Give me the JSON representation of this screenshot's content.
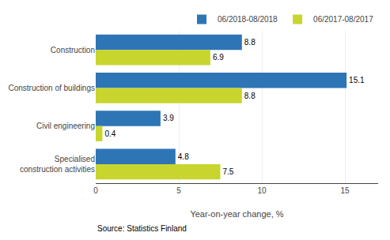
{
  "chart_data": {
    "type": "bar",
    "orientation": "horizontal",
    "categories": [
      "Construction",
      "Construction of buildings",
      "Civil engineering",
      "Specialised\nconstruction activities"
    ],
    "series": [
      {
        "name": "06/2018-08/2018",
        "color": "#2E75B6",
        "values": [
          8.8,
          15.1,
          3.9,
          4.8
        ]
      },
      {
        "name": "06/2017-08/2017",
        "color": "#C8D52E",
        "values": [
          6.9,
          8.8,
          0.4,
          7.5
        ]
      }
    ],
    "xlabel": "Year-on-year change, %",
    "xlim": [
      0,
      17
    ],
    "xticks": [
      0,
      5,
      10,
      15
    ],
    "grid": true,
    "legend": "upper right",
    "data_labels": true,
    "annotations": [
      "Source: Statistics Finland"
    ]
  }
}
